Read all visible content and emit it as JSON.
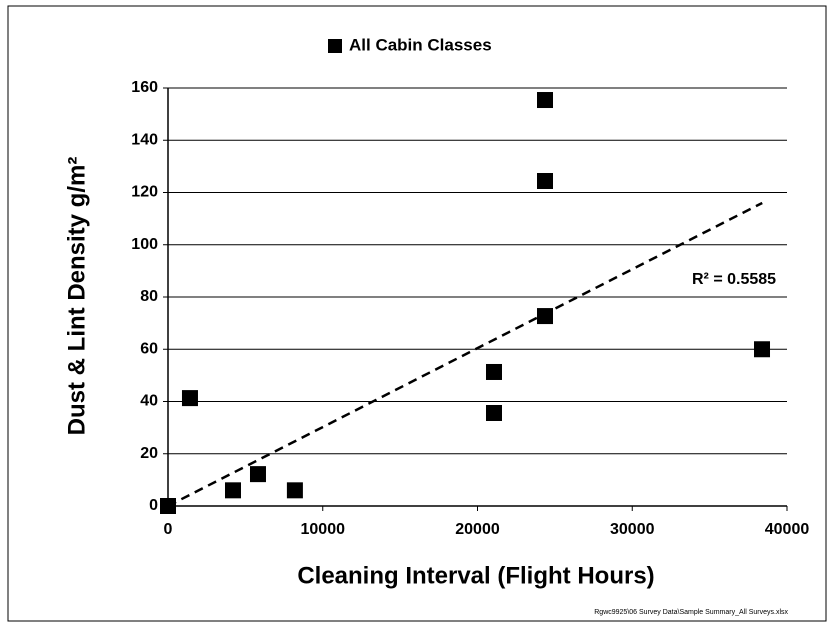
{
  "chart_data": {
    "type": "scatter",
    "series": [
      {
        "name": "All Cabin Classes",
        "color": "#000000",
        "x": [
          0,
          1420,
          4200,
          5815,
          8200,
          21066,
          21066,
          24362,
          24362,
          24362,
          38385
        ],
        "values": [
          0,
          41.3,
          6,
          12.2,
          6,
          51.3,
          35.6,
          155.4,
          124.4,
          72.7,
          60
        ]
      }
    ],
    "trendline": {
      "x": [
        0,
        38400
      ],
      "values": [
        0,
        116
      ],
      "dashed": true
    },
    "annotation": "R² = 0.5585",
    "x_label": "Cleaning Interval (Flight Hours)",
    "y_label": "Dust & Lint Density g/m²",
    "footnote": "Rgwc9925\\06 Survey Data\\Sample Summary_All Surveys.xlsx",
    "xlim": [
      0,
      40000
    ],
    "xticks": [
      0,
      10000,
      20000,
      30000,
      40000
    ],
    "ylim": [
      0,
      160
    ],
    "yticks": [
      0,
      20,
      40,
      60,
      80,
      100,
      120,
      140,
      160
    ],
    "grid": true,
    "legend": "top"
  }
}
